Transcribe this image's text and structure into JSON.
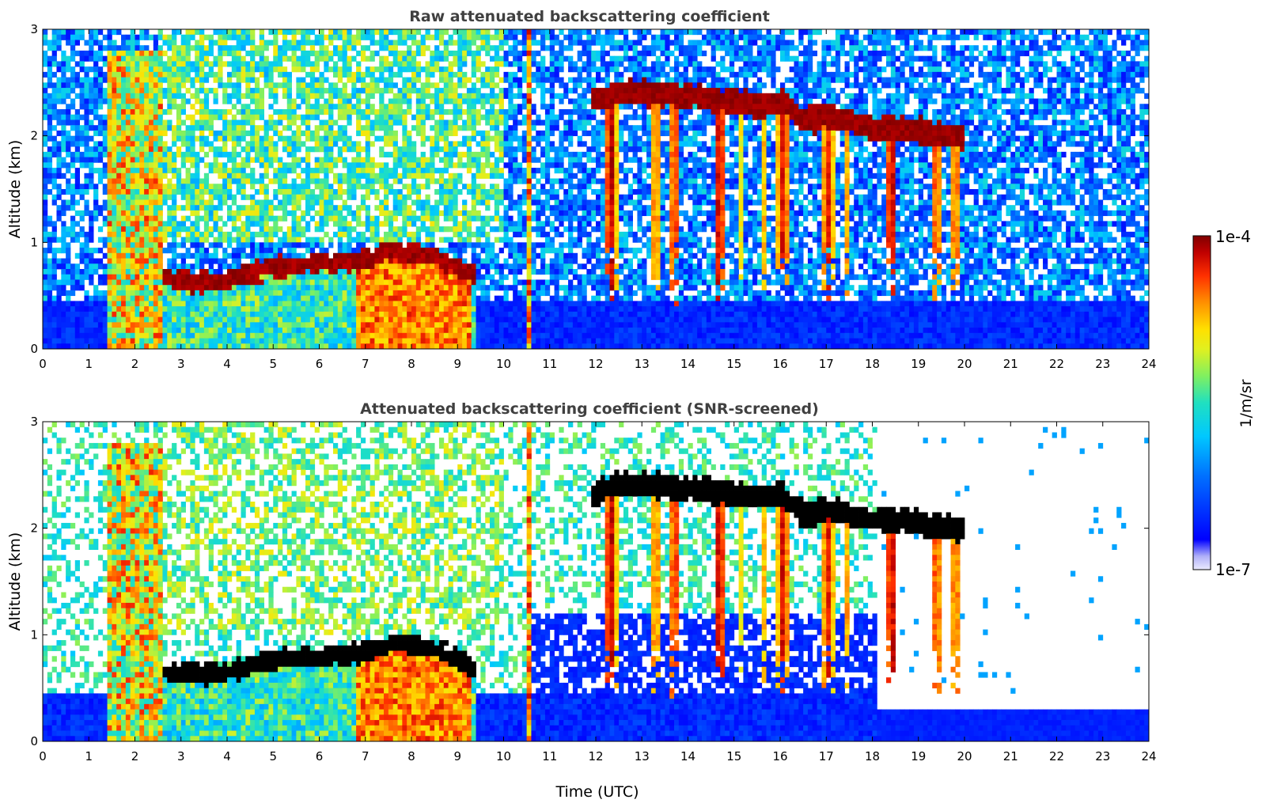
{
  "chart_data": [
    {
      "type": "heatmap",
      "title": "Raw attenuated backscattering coefficient",
      "ylabel": "Altitude (km)",
      "xlabel": "",
      "xlim": [
        0,
        24
      ],
      "ylim": [
        0,
        3
      ],
      "x_ticks": [
        "0",
        "1",
        "2",
        "3",
        "4",
        "5",
        "6",
        "7",
        "8",
        "9",
        "10",
        "11",
        "12",
        "13",
        "14",
        "15",
        "16",
        "17",
        "18",
        "19",
        "20",
        "21",
        "22",
        "23",
        "24"
      ],
      "y_ticks": [
        "0",
        "1",
        "2",
        "3"
      ],
      "features": {
        "boundary_layer_top_km": [
          [
            2.6,
            0.68
          ],
          [
            3.5,
            0.66
          ],
          [
            4.0,
            0.68
          ],
          [
            5.0,
            0.8
          ],
          [
            6.0,
            0.83
          ],
          [
            6.8,
            0.85
          ],
          [
            7.5,
            0.95
          ],
          [
            8.5,
            0.9
          ],
          [
            9.4,
            0.72
          ]
        ],
        "cloud_top_km": [
          [
            11.9,
            2.4
          ],
          [
            12.6,
            2.5
          ],
          [
            14.5,
            2.42
          ],
          [
            15.5,
            2.35
          ],
          [
            16.0,
            2.4
          ],
          [
            16.5,
            2.2
          ],
          [
            17.0,
            2.25
          ],
          [
            18.0,
            2.15
          ],
          [
            19.0,
            2.12
          ],
          [
            20.0,
            2.05
          ]
        ],
        "aerosol_layer_hours": [
          6.8,
          9.3
        ],
        "noise_floor_height_km": 0.45
      }
    },
    {
      "type": "heatmap",
      "title": "Attenuated backscattering coefficient (SNR-screened)",
      "ylabel": "Altitude (km)",
      "xlabel": "Time (UTC)",
      "xlim": [
        0,
        24
      ],
      "ylim": [
        0,
        3
      ],
      "x_ticks": [
        "0",
        "1",
        "2",
        "3",
        "4",
        "5",
        "6",
        "7",
        "8",
        "9",
        "10",
        "11",
        "12",
        "13",
        "14",
        "15",
        "16",
        "17",
        "18",
        "19",
        "20",
        "21",
        "22",
        "23",
        "24"
      ],
      "y_ticks": [
        "0",
        "1",
        "2",
        "3"
      ],
      "features": {
        "screened_surface_band_km": 0.28,
        "valid_signal_end_hour": 18.1
      }
    }
  ],
  "colorbar": {
    "label": "1/m/sr",
    "max_label": "1e-4",
    "min_label": "1e-7",
    "colors": [
      "#e8e8f8",
      "#b8b8f0",
      "#0000ff",
      "#0060ff",
      "#00b0ff",
      "#00e0e0",
      "#60e080",
      "#c0f040",
      "#ffff00",
      "#ffb000",
      "#ff5000",
      "#e00000",
      "#800000"
    ]
  }
}
